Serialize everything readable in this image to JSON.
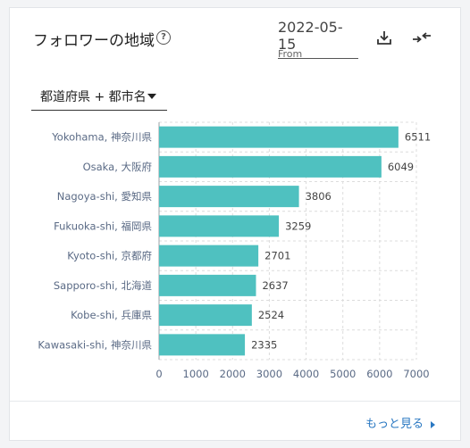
{
  "header": {
    "title": "フォロワーの地域",
    "help_icon": "question-circle-icon",
    "date": "2022-05-15",
    "date_caption": "From",
    "download_icon": "download-icon",
    "compare_icon": "compare-arrows-icon"
  },
  "dropdown": {
    "label": "都道府県 + 都市名"
  },
  "footer": {
    "more_label": "もっと見る"
  },
  "colors": {
    "bar": "#4fc1c0",
    "grid": "#dcdcdc",
    "label": "#5a6a85",
    "value": "#444444"
  },
  "chart_data": {
    "type": "bar",
    "orientation": "horizontal",
    "categories": [
      "Yokohama, 神奈川県",
      "Osaka, 大阪府",
      "Nagoya-shi, 愛知県",
      "Fukuoka-shi, 福岡県",
      "Kyoto-shi, 京都府",
      "Sapporo-shi, 北海道",
      "Kobe-shi, 兵庫県",
      "Kawasaki-shi, 神奈川県"
    ],
    "values": [
      6511,
      6049,
      3806,
      3259,
      2701,
      2637,
      2524,
      2335
    ],
    "xlim": [
      0,
      7000
    ],
    "xticks": [
      0,
      1000,
      2000,
      3000,
      4000,
      5000,
      6000,
      7000
    ],
    "grid": true,
    "data_labels": true
  }
}
